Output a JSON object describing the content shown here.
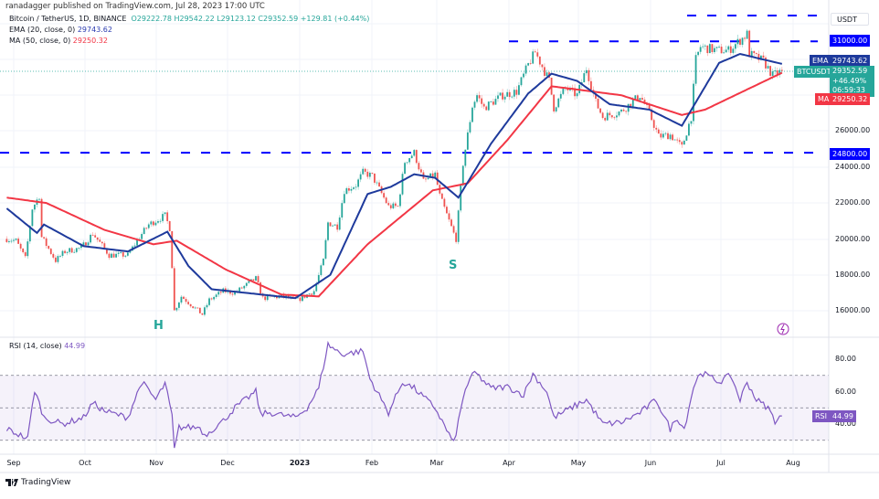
{
  "publisher": "ranadagger published on TradingView.com, Jul 28, 2023 17:00 UTC",
  "legend": {
    "symbol": "Bitcoin / TetherUS, 1D, BINANCE",
    "open": "O29222.78",
    "high": "H29542.22",
    "low": "L29123.12",
    "close": "C29352.59",
    "change": "+129.81 (+0.44%)",
    "ema_label": "EMA (20, close, 0)",
    "ema_value": "29743.62",
    "ma_label": "MA (50, close, 0)",
    "ma_value": "29250.32"
  },
  "currency_button": "USDT",
  "price_axis": {
    "ticks": [
      "26000.00",
      "24000.00",
      "22000.00",
      "20000.00",
      "18000.00",
      "16000.00"
    ],
    "level_31000": "31000.00",
    "level_24800": "24800.00",
    "ema_tag": "EMA",
    "ema_tag_value": "29743.62",
    "symbol_tag": "BTCUSDT",
    "last_price": "29352.59",
    "last_change": "+46.49%",
    "countdown": "06:59:33",
    "ma_tag": "MA",
    "ma_tag_value": "29250.32"
  },
  "annotations": {
    "head": "H",
    "shoulder": "S"
  },
  "rsi": {
    "label": "RSI (14, close)",
    "value": "44.99",
    "tag": "RSI",
    "ticks": [
      "80.00",
      "60.00",
      "40.00"
    ]
  },
  "time_axis": [
    "Sep",
    "Oct",
    "Nov",
    "Dec",
    "2023",
    "Feb",
    "Mar",
    "Apr",
    "May",
    "Jun",
    "Jul",
    "Aug"
  ],
  "footer": "TradingView",
  "colors": {
    "up": "#26a69a",
    "down": "#ef5350",
    "ema": "#1e3a9c",
    "ma": "#f23645",
    "rsi": "#7e57c2",
    "levels": "#0000ff"
  },
  "chart_data": {
    "type": "candlestick",
    "symbol": "BTCUSDT",
    "interval": "1D",
    "ylim": [
      15000,
      33000
    ],
    "horizontal_levels": [
      31000,
      24800
    ],
    "close_path": [
      [
        "2022-08-29",
        20000
      ],
      [
        "2022-09-02",
        19900
      ],
      [
        "2022-09-06",
        18900
      ],
      [
        "2022-09-09",
        21700
      ],
      [
        "2022-09-12",
        22400
      ],
      [
        "2022-09-13",
        20100
      ],
      [
        "2022-09-19",
        18800
      ],
      [
        "2022-09-23",
        19300
      ],
      [
        "2022-09-30",
        19500
      ],
      [
        "2022-10-05",
        20300
      ],
      [
        "2022-10-12",
        19100
      ],
      [
        "2022-10-20",
        19100
      ],
      [
        "2022-10-25",
        20100
      ],
      [
        "2022-10-29",
        20800
      ],
      [
        "2022-11-05",
        21300
      ],
      [
        "2022-11-07",
        20600
      ],
      [
        "2022-11-08",
        18500
      ],
      [
        "2022-11-09",
        16000
      ],
      [
        "2022-11-12",
        16800
      ],
      [
        "2022-11-21",
        15800
      ],
      [
        "2022-11-24",
        16600
      ],
      [
        "2022-11-30",
        17100
      ],
      [
        "2022-12-05",
        17000
      ],
      [
        "2022-12-14",
        17800
      ],
      [
        "2022-12-17",
        16700
      ],
      [
        "2022-12-25",
        16800
      ],
      [
        "2023-01-01",
        16600
      ],
      [
        "2023-01-08",
        17100
      ],
      [
        "2023-01-12",
        18800
      ],
      [
        "2023-01-14",
        20900
      ],
      [
        "2023-01-18",
        20700
      ],
      [
        "2023-01-21",
        22700
      ],
      [
        "2023-01-26",
        23000
      ],
      [
        "2023-01-29",
        23700
      ],
      [
        "2023-02-02",
        23500
      ],
      [
        "2023-02-09",
        21800
      ],
      [
        "2023-02-13",
        21800
      ],
      [
        "2023-02-16",
        24300
      ],
      [
        "2023-02-20",
        24800
      ],
      [
        "2023-02-24",
        23200
      ],
      [
        "2023-03-01",
        23600
      ],
      [
        "2023-03-03",
        22400
      ],
      [
        "2023-03-09",
        20300
      ],
      [
        "2023-03-10",
        20000
      ],
      [
        "2023-03-13",
        24200
      ],
      [
        "2023-03-17",
        27400
      ],
      [
        "2023-03-19",
        28000
      ],
      [
        "2023-03-22",
        27300
      ],
      [
        "2023-03-30",
        28000
      ],
      [
        "2023-04-05",
        28200
      ],
      [
        "2023-04-10",
        29700
      ],
      [
        "2023-04-13",
        30400
      ],
      [
        "2023-04-19",
        28800
      ],
      [
        "2023-04-21",
        27300
      ],
      [
        "2023-04-26",
        28400
      ],
      [
        "2023-05-01",
        28000
      ],
      [
        "2023-05-05",
        29500
      ],
      [
        "2023-05-09",
        27600
      ],
      [
        "2023-05-12",
        26800
      ],
      [
        "2023-05-20",
        27100
      ],
      [
        "2023-05-28",
        28000
      ],
      [
        "2023-06-01",
        27000
      ],
      [
        "2023-06-05",
        25700
      ],
      [
        "2023-06-10",
        25800
      ],
      [
        "2023-06-15",
        25100
      ],
      [
        "2023-06-19",
        26800
      ],
      [
        "2023-06-21",
        30000
      ],
      [
        "2023-06-23",
        30700
      ],
      [
        "2023-06-30",
        30500
      ],
      [
        "2023-07-05",
        30500
      ],
      [
        "2023-07-13",
        31400
      ],
      [
        "2023-07-14",
        30300
      ],
      [
        "2023-07-20",
        29900
      ],
      [
        "2023-07-24",
        29100
      ],
      [
        "2023-07-28",
        29352.59
      ]
    ],
    "ema20": [
      [
        "2022-08-29",
        21700
      ],
      [
        "2022-09-11",
        20330
      ],
      [
        "2022-09-14",
        20800
      ],
      [
        "2022-10-01",
        19600
      ],
      [
        "2022-10-20",
        19300
      ],
      [
        "2022-11-06",
        20400
      ],
      [
        "2022-11-15",
        18500
      ],
      [
        "2022-11-25",
        17200
      ],
      [
        "2022-12-31",
        16700
      ],
      [
        "2023-01-15",
        18000
      ],
      [
        "2023-01-31",
        22500
      ],
      [
        "2023-02-10",
        22900
      ],
      [
        "2023-02-20",
        23600
      ],
      [
        "2023-03-01",
        23400
      ],
      [
        "2023-03-11",
        22300
      ],
      [
        "2023-03-25",
        25300
      ],
      [
        "2023-04-10",
        28100
      ],
      [
        "2023-04-20",
        29200
      ],
      [
        "2023-05-01",
        28800
      ],
      [
        "2023-05-15",
        27500
      ],
      [
        "2023-06-01",
        27200
      ],
      [
        "2023-06-15",
        26300
      ],
      [
        "2023-07-01",
        29800
      ],
      [
        "2023-07-10",
        30300
      ],
      [
        "2023-07-28",
        29743.62
      ]
    ],
    "ma50": [
      [
        "2022-08-29",
        22300
      ],
      [
        "2022-09-15",
        22000
      ],
      [
        "2022-10-10",
        20500
      ],
      [
        "2022-10-31",
        19700
      ],
      [
        "2022-11-10",
        19900
      ],
      [
        "2022-12-01",
        18300
      ],
      [
        "2022-12-25",
        16900
      ],
      [
        "2023-01-10",
        16800
      ],
      [
        "2023-01-31",
        19700
      ],
      [
        "2023-02-28",
        22700
      ],
      [
        "2023-03-15",
        23100
      ],
      [
        "2023-04-01",
        25500
      ],
      [
        "2023-04-20",
        28500
      ],
      [
        "2023-05-20",
        28000
      ],
      [
        "2023-06-15",
        26900
      ],
      [
        "2023-06-25",
        27200
      ],
      [
        "2023-07-28",
        29250.32
      ]
    ],
    "rsi14": [
      [
        "2022-08-29",
        37
      ],
      [
        "2022-09-07",
        31
      ],
      [
        "2022-09-10",
        61
      ],
      [
        "2022-09-14",
        44
      ],
      [
        "2022-09-22",
        40
      ],
      [
        "2022-10-01",
        44
      ],
      [
        "2022-10-05",
        53
      ],
      [
        "2022-10-10",
        48
      ],
      [
        "2022-10-20",
        44
      ],
      [
        "2022-10-26",
        66
      ],
      [
        "2022-11-01",
        55
      ],
      [
        "2022-11-05",
        65
      ],
      [
        "2022-11-08",
        45
      ],
      [
        "2022-11-09",
        24
      ],
      [
        "2022-11-11",
        38
      ],
      [
        "2022-11-20",
        38
      ],
      [
        "2022-11-22",
        33
      ],
      [
        "2022-11-30",
        42
      ],
      [
        "2022-12-05",
        50
      ],
      [
        "2022-12-14",
        60
      ],
      [
        "2022-12-16",
        46
      ],
      [
        "2022-12-20",
        47
      ],
      [
        "2022-12-31",
        44
      ],
      [
        "2023-01-05",
        50
      ],
      [
        "2023-01-10",
        62
      ],
      [
        "2023-01-14",
        89
      ],
      [
        "2023-01-20",
        83
      ],
      [
        "2023-01-29",
        85
      ],
      [
        "2023-02-01",
        68
      ],
      [
        "2023-02-09",
        47
      ],
      [
        "2023-02-15",
        66
      ],
      [
        "2023-02-20",
        62
      ],
      [
        "2023-03-01",
        50
      ],
      [
        "2023-03-09",
        28
      ],
      [
        "2023-03-14",
        62
      ],
      [
        "2023-03-18",
        72
      ],
      [
        "2023-03-25",
        62
      ],
      [
        "2023-04-01",
        63
      ],
      [
        "2023-04-08",
        58
      ],
      [
        "2023-04-12",
        71
      ],
      [
        "2023-04-18",
        60
      ],
      [
        "2023-04-21",
        44
      ],
      [
        "2023-05-01",
        52
      ],
      [
        "2023-05-05",
        55
      ],
      [
        "2023-05-12",
        40
      ],
      [
        "2023-05-20",
        41
      ],
      [
        "2023-05-28",
        47
      ],
      [
        "2023-06-04",
        55
      ],
      [
        "2023-06-10",
        37
      ],
      [
        "2023-06-13",
        44
      ],
      [
        "2023-06-16",
        37
      ],
      [
        "2023-06-20",
        63
      ],
      [
        "2023-06-23",
        72
      ],
      [
        "2023-07-01",
        66
      ],
      [
        "2023-07-06",
        70
      ],
      [
        "2023-07-10",
        55
      ],
      [
        "2023-07-13",
        66
      ],
      [
        "2023-07-17",
        55
      ],
      [
        "2023-07-22",
        50
      ],
      [
        "2023-07-25",
        42
      ],
      [
        "2023-07-28",
        44.99
      ]
    ],
    "rsi_bands": [
      70,
      50,
      30
    ]
  }
}
